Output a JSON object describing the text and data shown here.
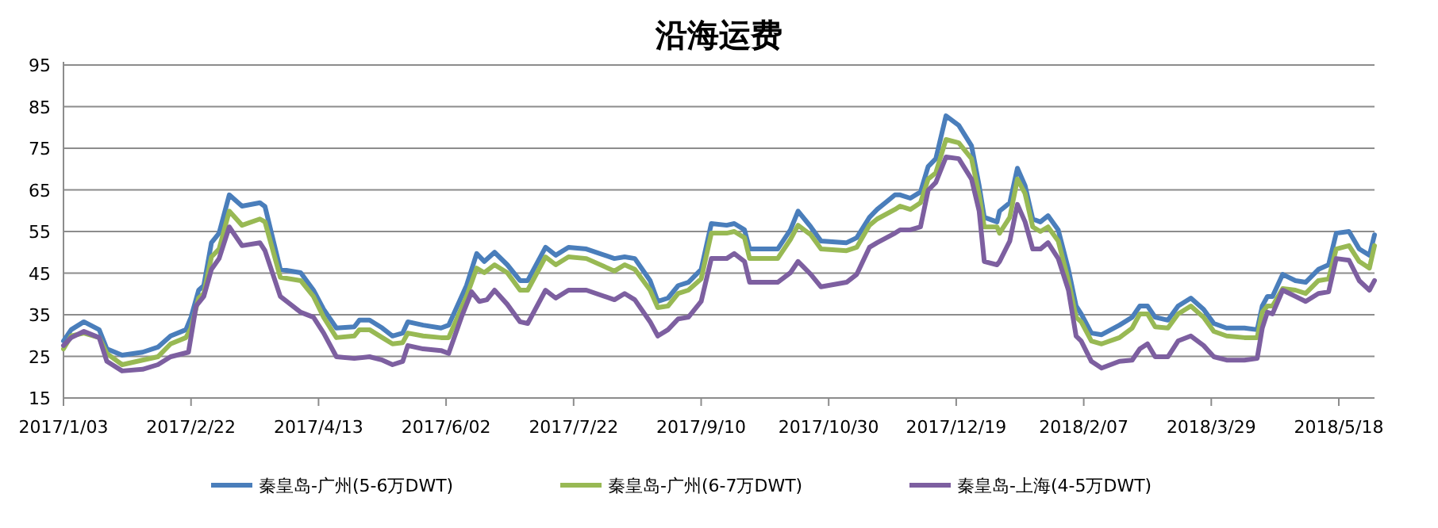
{
  "chart_data": {
    "type": "line",
    "title": "沿海运费",
    "xlim": [
      "2017-01-03",
      "2018-06-01"
    ],
    "xticks": [
      {
        "value": "2017-01-03",
        "label": "2017/1/03"
      },
      {
        "value": "2017-02-22",
        "label": "2017/2/22"
      },
      {
        "value": "2017-04-13",
        "label": "2017/4/13"
      },
      {
        "value": "2017-06-02",
        "label": "2017/6/02"
      },
      {
        "value": "2017-07-22",
        "label": "2017/7/22"
      },
      {
        "value": "2017-09-10",
        "label": "2017/9/10"
      },
      {
        "value": "2017-10-30",
        "label": "2017/10/30"
      },
      {
        "value": "2017-12-19",
        "label": "2017/12/19"
      },
      {
        "value": "2018-02-07",
        "label": "2018/2/07"
      },
      {
        "value": "2018-03-29",
        "label": "2018/3/29"
      },
      {
        "value": "2018-05-18",
        "label": "2018/5/18"
      }
    ],
    "ylim": [
      15,
      95
    ],
    "yticks": [
      15,
      25,
      35,
      45,
      55,
      65,
      75,
      85,
      95
    ],
    "grid": "y",
    "legend": "bottom",
    "marker": "none",
    "line_style": "solid",
    "series": [
      {
        "name": "秦皇岛-广州(5-6万DWT)",
        "color": "#4a7ebb",
        "x": [
          "2017-01-03",
          "2017-01-06",
          "2017-01-11",
          "2017-01-17",
          "2017-01-20",
          "2017-01-26",
          "2017-02-03",
          "2017-02-09",
          "2017-02-14",
          "2017-02-20",
          "2017-02-22",
          "2017-02-25",
          "2017-02-27",
          "2017-03-02",
          "2017-03-05",
          "2017-03-09",
          "2017-03-14",
          "2017-03-21",
          "2017-03-23",
          "2017-03-29",
          "2017-04-06",
          "2017-04-11",
          "2017-04-15",
          "2017-04-20",
          "2017-04-27",
          "2017-04-29",
          "2017-05-03",
          "2017-05-08",
          "2017-05-12",
          "2017-05-16",
          "2017-05-18",
          "2017-05-24",
          "2017-05-31",
          "2017-06-03",
          "2017-06-10",
          "2017-06-14",
          "2017-06-17",
          "2017-06-21",
          "2017-06-26",
          "2017-07-01",
          "2017-07-04",
          "2017-07-11",
          "2017-07-15",
          "2017-07-20",
          "2017-07-27",
          "2017-08-07",
          "2017-08-11",
          "2017-08-15",
          "2017-08-21",
          "2017-08-24",
          "2017-08-28",
          "2017-09-01",
          "2017-09-05",
          "2017-09-10",
          "2017-09-14",
          "2017-09-20",
          "2017-09-23",
          "2017-09-27",
          "2017-09-29",
          "2017-10-10",
          "2017-10-15",
          "2017-10-18",
          "2017-10-23",
          "2017-10-27",
          "2017-11-06",
          "2017-11-10",
          "2017-11-15",
          "2017-11-18",
          "2017-11-25",
          "2017-11-27",
          "2017-12-01",
          "2017-12-05",
          "2017-12-08",
          "2017-12-11",
          "2017-12-15",
          "2017-12-20",
          "2017-12-25",
          "2017-12-28",
          "2017-12-30",
          "2018-01-04",
          "2018-01-05",
          "2018-01-09",
          "2018-01-12",
          "2018-01-15",
          "2018-01-18",
          "2018-01-21",
          "2018-01-24",
          "2018-01-28",
          "2018-02-01",
          "2018-02-04",
          "2018-02-06",
          "2018-02-10",
          "2018-02-14",
          "2018-02-21",
          "2018-02-26",
          "2018-03-01",
          "2018-03-04",
          "2018-03-07",
          "2018-03-12",
          "2018-03-16",
          "2018-03-21",
          "2018-03-26",
          "2018-03-30",
          "2018-04-04",
          "2018-04-11",
          "2018-04-16",
          "2018-04-18",
          "2018-04-20",
          "2018-04-22",
          "2018-04-26",
          "2018-05-01",
          "2018-05-05",
          "2018-05-10",
          "2018-05-14",
          "2018-05-17",
          "2018-05-22",
          "2018-05-26",
          "2018-05-30",
          "2018-06-01"
        ],
        "values": [
          28.7,
          31.4,
          33.3,
          31.4,
          26.8,
          25.3,
          26,
          27.2,
          29.9,
          31.4,
          34.4,
          40.9,
          42,
          52.3,
          54.6,
          63.8,
          61.1,
          61.9,
          61,
          45.9,
          45.1,
          40.9,
          36.3,
          31.8,
          32.1,
          33.7,
          33.7,
          31.8,
          29.9,
          30.6,
          33.3,
          32.5,
          31.8,
          32.5,
          42,
          49.7,
          47.8,
          50,
          47,
          43.2,
          43.2,
          51.2,
          49.3,
          51.2,
          50.8,
          48.5,
          48.9,
          48.5,
          43.2,
          38.2,
          39,
          42,
          42.8,
          45.9,
          56.9,
          56.5,
          56.9,
          55.4,
          50.8,
          50.8,
          55.4,
          59.9,
          56.1,
          52.7,
          52.3,
          53.5,
          58.4,
          60.3,
          63.8,
          63.8,
          63,
          64.5,
          70.6,
          72.5,
          82.8,
          80.5,
          75.6,
          66,
          58.4,
          57.3,
          59.9,
          61.9,
          70.2,
          66,
          58,
          57.3,
          58.8,
          55.4,
          45.9,
          37.1,
          35.2,
          30.6,
          30.2,
          32.5,
          34.4,
          37.1,
          37.1,
          34.4,
          33.7,
          37.1,
          39,
          36.3,
          32.9,
          31.8,
          31.8,
          31.4,
          37.1,
          39.4,
          39.4,
          44.7,
          43.2,
          42.8,
          45.9,
          47,
          54.6,
          55,
          50.8,
          49.3,
          54.2
        ]
      },
      {
        "name": "秦皇岛-广州(6-7万DWT)",
        "color": "#98b954",
        "x": [
          "2017-01-03",
          "2017-01-06",
          "2017-01-11",
          "2017-01-17",
          "2017-01-20",
          "2017-01-26",
          "2017-02-03",
          "2017-02-09",
          "2017-02-14",
          "2017-02-20",
          "2017-02-22",
          "2017-02-25",
          "2017-02-27",
          "2017-03-02",
          "2017-03-05",
          "2017-03-09",
          "2017-03-14",
          "2017-03-21",
          "2017-03-23",
          "2017-03-29",
          "2017-04-06",
          "2017-04-11",
          "2017-04-15",
          "2017-04-20",
          "2017-04-27",
          "2017-04-29",
          "2017-05-03",
          "2017-05-08",
          "2017-05-12",
          "2017-05-16",
          "2017-05-18",
          "2017-05-24",
          "2017-05-31",
          "2017-06-03",
          "2017-06-10",
          "2017-06-14",
          "2017-06-17",
          "2017-06-21",
          "2017-06-26",
          "2017-07-01",
          "2017-07-04",
          "2017-07-11",
          "2017-07-15",
          "2017-07-20",
          "2017-07-27",
          "2017-08-07",
          "2017-08-11",
          "2017-08-15",
          "2017-08-21",
          "2017-08-24",
          "2017-08-28",
          "2017-09-01",
          "2017-09-05",
          "2017-09-10",
          "2017-09-14",
          "2017-09-20",
          "2017-09-23",
          "2017-09-27",
          "2017-09-29",
          "2017-10-10",
          "2017-10-15",
          "2017-10-18",
          "2017-10-23",
          "2017-10-27",
          "2017-11-06",
          "2017-11-10",
          "2017-11-15",
          "2017-11-18",
          "2017-11-25",
          "2017-11-27",
          "2017-12-01",
          "2017-12-05",
          "2017-12-08",
          "2017-12-11",
          "2017-12-15",
          "2017-12-20",
          "2017-12-25",
          "2017-12-28",
          "2017-12-30",
          "2018-01-04",
          "2018-01-05",
          "2018-01-09",
          "2018-01-12",
          "2018-01-15",
          "2018-01-18",
          "2018-01-21",
          "2018-01-24",
          "2018-01-28",
          "2018-02-01",
          "2018-02-04",
          "2018-02-06",
          "2018-02-10",
          "2018-02-14",
          "2018-02-21",
          "2018-02-26",
          "2018-03-01",
          "2018-03-04",
          "2018-03-07",
          "2018-03-12",
          "2018-03-16",
          "2018-03-21",
          "2018-03-26",
          "2018-03-30",
          "2018-04-04",
          "2018-04-11",
          "2018-04-16",
          "2018-04-18",
          "2018-04-20",
          "2018-04-22",
          "2018-04-26",
          "2018-05-01",
          "2018-05-05",
          "2018-05-10",
          "2018-05-14",
          "2018-05-17",
          "2018-05-22",
          "2018-05-26",
          "2018-05-30",
          "2018-06-01"
        ],
        "values": [
          26.8,
          29.9,
          30.6,
          29.5,
          25.7,
          23,
          24.1,
          24.9,
          28,
          29.5,
          31.8,
          39,
          40.1,
          48.9,
          50.8,
          59.9,
          56.5,
          58,
          57.3,
          44,
          43.2,
          39.4,
          34.4,
          29.5,
          29.9,
          31.4,
          31.4,
          29.5,
          28,
          28.3,
          30.6,
          29.9,
          29.5,
          29.5,
          39.4,
          46.2,
          45.1,
          47,
          45.1,
          40.9,
          40.9,
          48.9,
          47,
          48.9,
          48.5,
          45.5,
          47,
          45.9,
          40.9,
          36.7,
          37.1,
          40.1,
          40.9,
          43.6,
          54.6,
          54.6,
          55,
          53.5,
          48.5,
          48.5,
          53.1,
          56.5,
          54.2,
          50.8,
          50.4,
          51.2,
          56.5,
          58,
          60.3,
          61.1,
          60.3,
          61.9,
          67.6,
          69.1,
          77.1,
          76.3,
          72.5,
          63.8,
          56.1,
          56.1,
          54.6,
          58.4,
          67.6,
          64.1,
          56.1,
          55,
          56.1,
          52.7,
          43.2,
          34.4,
          33.3,
          28.7,
          28,
          29.5,
          31.8,
          35.2,
          35.2,
          32.1,
          31.8,
          35.2,
          37.1,
          34.4,
          31,
          29.9,
          29.5,
          29.5,
          35.6,
          37.1,
          37.1,
          41.3,
          40.9,
          40.1,
          43.2,
          43.6,
          50.8,
          51.6,
          47.8,
          46.2,
          51.6
        ]
      },
      {
        "name": "秦皇岛-上海(4-5万DWT)",
        "color": "#7d5fa0",
        "x": [
          "2017-01-03",
          "2017-01-06",
          "2017-01-11",
          "2017-01-17",
          "2017-01-20",
          "2017-01-26",
          "2017-02-03",
          "2017-02-09",
          "2017-02-14",
          "2017-02-21",
          "2017-02-24",
          "2017-02-27",
          "2017-03-02",
          "2017-03-05",
          "2017-03-09",
          "2017-03-14",
          "2017-03-21",
          "2017-03-23",
          "2017-03-29",
          "2017-04-06",
          "2017-04-11",
          "2017-04-15",
          "2017-04-20",
          "2017-04-27",
          "2017-05-03",
          "2017-05-08",
          "2017-05-12",
          "2017-05-16",
          "2017-05-18",
          "2017-05-24",
          "2017-05-31",
          "2017-06-03",
          "2017-06-08",
          "2017-06-12",
          "2017-06-15",
          "2017-06-18",
          "2017-06-21",
          "2017-06-26",
          "2017-07-01",
          "2017-07-04",
          "2017-07-11",
          "2017-07-15",
          "2017-07-20",
          "2017-07-27",
          "2017-08-07",
          "2017-08-11",
          "2017-08-15",
          "2017-08-21",
          "2017-08-24",
          "2017-08-28",
          "2017-09-01",
          "2017-09-05",
          "2017-09-10",
          "2017-09-14",
          "2017-09-20",
          "2017-09-23",
          "2017-09-27",
          "2017-09-29",
          "2017-10-10",
          "2017-10-15",
          "2017-10-18",
          "2017-10-23",
          "2017-10-27",
          "2017-11-06",
          "2017-11-10",
          "2017-11-15",
          "2017-11-18",
          "2017-11-25",
          "2017-11-27",
          "2017-12-01",
          "2017-12-05",
          "2017-12-08",
          "2017-12-11",
          "2017-12-15",
          "2017-12-20",
          "2017-12-25",
          "2017-12-28",
          "2017-12-30",
          "2018-01-04",
          "2018-01-05",
          "2018-01-09",
          "2018-01-12",
          "2018-01-15",
          "2018-01-18",
          "2018-01-21",
          "2018-01-24",
          "2018-01-28",
          "2018-02-01",
          "2018-02-04",
          "2018-02-06",
          "2018-02-10",
          "2018-02-14",
          "2018-02-21",
          "2018-02-26",
          "2018-03-01",
          "2018-03-04",
          "2018-03-07",
          "2018-03-12",
          "2018-03-16",
          "2018-03-21",
          "2018-03-26",
          "2018-03-30",
          "2018-04-04",
          "2018-04-11",
          "2018-04-16",
          "2018-04-18",
          "2018-04-20",
          "2018-04-22",
          "2018-04-26",
          "2018-05-01",
          "2018-05-05",
          "2018-05-10",
          "2018-05-14",
          "2018-05-17",
          "2018-05-22",
          "2018-05-26",
          "2018-05-30",
          "2018-06-01"
        ],
        "values": [
          27.6,
          29.5,
          31,
          29.5,
          23.8,
          21.5,
          21.9,
          23,
          24.9,
          26,
          37.1,
          39.4,
          45.9,
          48.5,
          56.1,
          51.6,
          52.3,
          50.4,
          39.4,
          35.6,
          34.4,
          30.6,
          24.9,
          24.5,
          24.9,
          24.1,
          23,
          23.8,
          27.6,
          26.8,
          26.4,
          25.7,
          34.4,
          40.5,
          38.2,
          38.6,
          40.9,
          37.5,
          33.3,
          32.9,
          40.9,
          39,
          40.9,
          40.9,
          38.6,
          40.1,
          38.6,
          33.3,
          29.9,
          31.4,
          34,
          34.4,
          38.2,
          48.5,
          48.5,
          49.7,
          47.8,
          42.8,
          42.8,
          45.1,
          47.8,
          44.7,
          41.7,
          42.8,
          44.7,
          51.2,
          52.3,
          54.6,
          55.4,
          55.4,
          56.1,
          64.9,
          66.8,
          72.9,
          72.5,
          67.6,
          59.9,
          47.8,
          47,
          47.8,
          52.7,
          61.5,
          57.3,
          50.8,
          50.8,
          52.3,
          48.5,
          40.9,
          29.9,
          28.7,
          23.8,
          22.2,
          23.8,
          24.1,
          26.8,
          28,
          24.9,
          24.9,
          28.7,
          29.9,
          27.6,
          24.9,
          24.1,
          24.1,
          24.5,
          31.8,
          35.6,
          35.2,
          40.9,
          39.4,
          38.2,
          40.1,
          40.5,
          48.5,
          48.1,
          43.2,
          40.9,
          43.2
        ]
      }
    ]
  }
}
